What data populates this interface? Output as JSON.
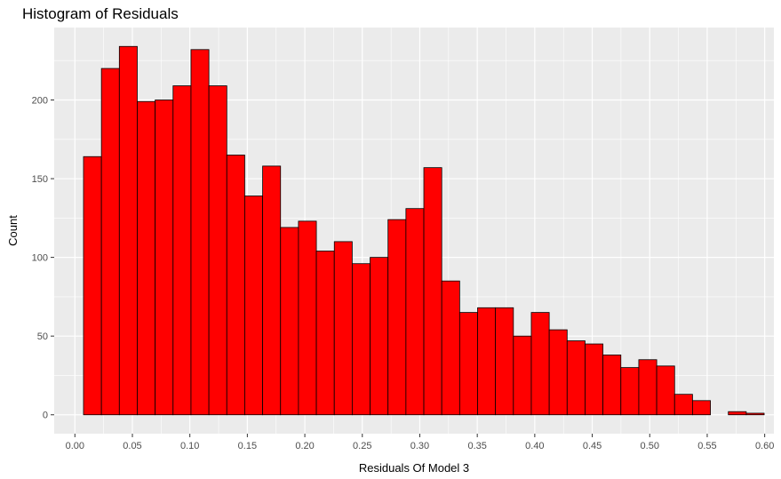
{
  "chart_data": {
    "type": "bar",
    "title": "Histogram of Residuals",
    "xlabel": "Residuals Of Model 3",
    "ylabel": "Count",
    "x_ticks": [
      "0.00",
      "0.05",
      "0.10",
      "0.15",
      "0.20",
      "0.25",
      "0.30",
      "0.35",
      "0.40",
      "0.45",
      "0.50",
      "0.55",
      "0.60"
    ],
    "y_ticks": [
      "0",
      "50",
      "100",
      "150",
      "200"
    ],
    "xlim": [
      -0.018,
      0.608
    ],
    "ylim": [
      -12,
      246
    ],
    "bin_width": 0.01558,
    "first_bin_start": 0.0075,
    "values": [
      164,
      220,
      234,
      199,
      200,
      209,
      232,
      209,
      165,
      139,
      158,
      119,
      123,
      104,
      110,
      96,
      100,
      124,
      131,
      157,
      85,
      65,
      68,
      68,
      50,
      65,
      54,
      47,
      45,
      38,
      30,
      35,
      31,
      13,
      9,
      0,
      2,
      1
    ],
    "bar_fill": "#ff0000",
    "bar_stroke": "#000000",
    "panel_background": "#ebebeb",
    "grid": true,
    "grid_color": "#ffffff"
  }
}
